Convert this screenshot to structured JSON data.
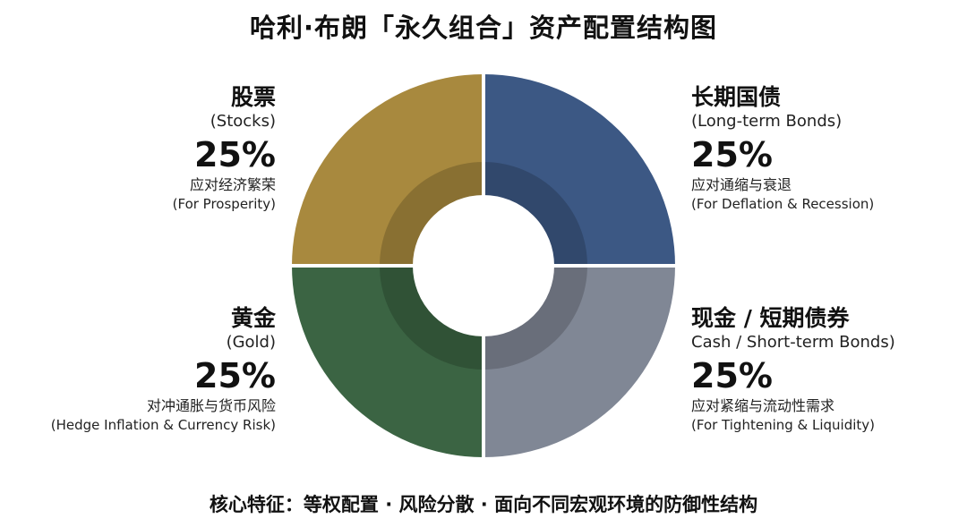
{
  "chart_data": {
    "type": "pie",
    "title": "哈利·布朗「永久组合」资产配置结构图",
    "categories": [
      "股票",
      "长期国债",
      "现金 / 短期债券",
      "黄金"
    ],
    "values": [
      25,
      25,
      25,
      25
    ],
    "slices": [
      {
        "name": "股票",
        "name_en": "(Stocks)",
        "value": 25,
        "value_label": "25%",
        "desc": "应对经济繁荣",
        "desc_en": "(For Prosperity)",
        "color": "#3C5884"
      },
      {
        "name": "长期国债",
        "name_en": "(Long-term Bonds)",
        "value": 25,
        "value_label": "25%",
        "desc": "应对通缩与衰退",
        "desc_en": "(For Deflation & Recession)",
        "color": "#808795"
      },
      {
        "name": "现金 / 短期债券",
        "name_en": "Cash / Short-term Bonds)",
        "value": 25,
        "value_label": "25%",
        "desc": "应对紧缩与流动性需求",
        "desc_en": "(For Tightening & Liquidity)",
        "color": "#3B6443"
      },
      {
        "name": "黄金",
        "name_en": "(Gold)",
        "value": 25,
        "value_label": "25%",
        "desc": "对冲通胀与货币风险",
        "desc_en": "(Hedge Inflation & Currency Risk)",
        "color": "#A8893E"
      }
    ],
    "legend": "none",
    "footer": "核心特征：等权配置 · 风险分散 · 面向不同宏观环境的防御性结构"
  }
}
